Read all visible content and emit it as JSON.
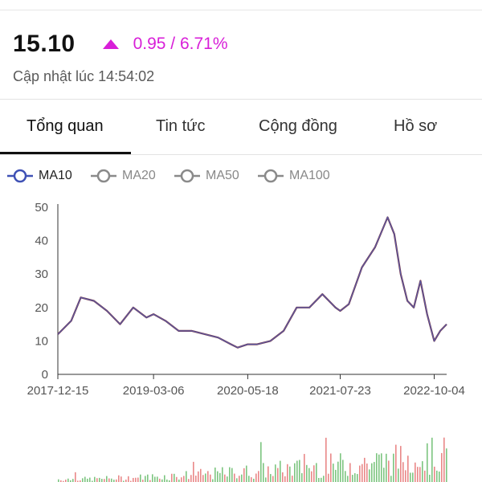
{
  "quote": {
    "price": "15.10",
    "change": "0.95 / 6.71%",
    "updated": "Cập nhật lúc 14:54:02",
    "color_up": "#d81fd8",
    "change_icon": "triangle-up-icon"
  },
  "tabs": [
    {
      "label": "Tổng quan",
      "active": true
    },
    {
      "label": "Tin tức",
      "active": false
    },
    {
      "label": "Cộng đồng",
      "active": false
    },
    {
      "label": "Hồ sơ",
      "active": false
    }
  ],
  "legend": [
    {
      "label": "MA10",
      "active": true,
      "color": "#3f51b5"
    },
    {
      "label": "MA20",
      "active": false,
      "color": "#888888"
    },
    {
      "label": "MA50",
      "active": false,
      "color": "#888888"
    },
    {
      "label": "MA100",
      "active": false,
      "color": "#888888"
    }
  ],
  "chart_data": {
    "type": "line",
    "title": "",
    "xlabel": "",
    "ylabel": "",
    "y_ticks": [
      "0",
      "10",
      "20",
      "30",
      "40",
      "50"
    ],
    "x_ticks": [
      "2017-12-15",
      "2019-03-06",
      "2020-05-18",
      "2021-07-23",
      "2022-10-04"
    ],
    "ylim": [
      0,
      50
    ],
    "grid": false,
    "series": [
      {
        "name": "MA10",
        "x": [
          "2017-12-15",
          "2018-02-15",
          "2018-04-01",
          "2018-06-01",
          "2018-08-01",
          "2018-10-01",
          "2018-12-01",
          "2019-02-01",
          "2019-03-06",
          "2019-05-01",
          "2019-07-01",
          "2019-09-01",
          "2019-11-01",
          "2020-01-01",
          "2020-03-01",
          "2020-04-01",
          "2020-05-18",
          "2020-07-01",
          "2020-09-01",
          "2020-11-01",
          "2021-01-01",
          "2021-03-01",
          "2021-05-01",
          "2021-07-01",
          "2021-07-23",
          "2021-09-01",
          "2021-11-01",
          "2022-01-01",
          "2022-03-01",
          "2022-04-01",
          "2022-05-01",
          "2022-06-01",
          "2022-07-01",
          "2022-08-01",
          "2022-09-01",
          "2022-10-04",
          "2022-11-01",
          "2022-12-01"
        ],
        "values": [
          12,
          16,
          23,
          22,
          19,
          15,
          20,
          17,
          18,
          16,
          13,
          13,
          12,
          11,
          9,
          8,
          9,
          9,
          10,
          13,
          20,
          20,
          24,
          20,
          19,
          21,
          32,
          38,
          47,
          42,
          30,
          22,
          20,
          28,
          18,
          10,
          13,
          15
        ]
      }
    ],
    "volume_colors": [
      "#e57373",
      "#66bb6a"
    ]
  }
}
